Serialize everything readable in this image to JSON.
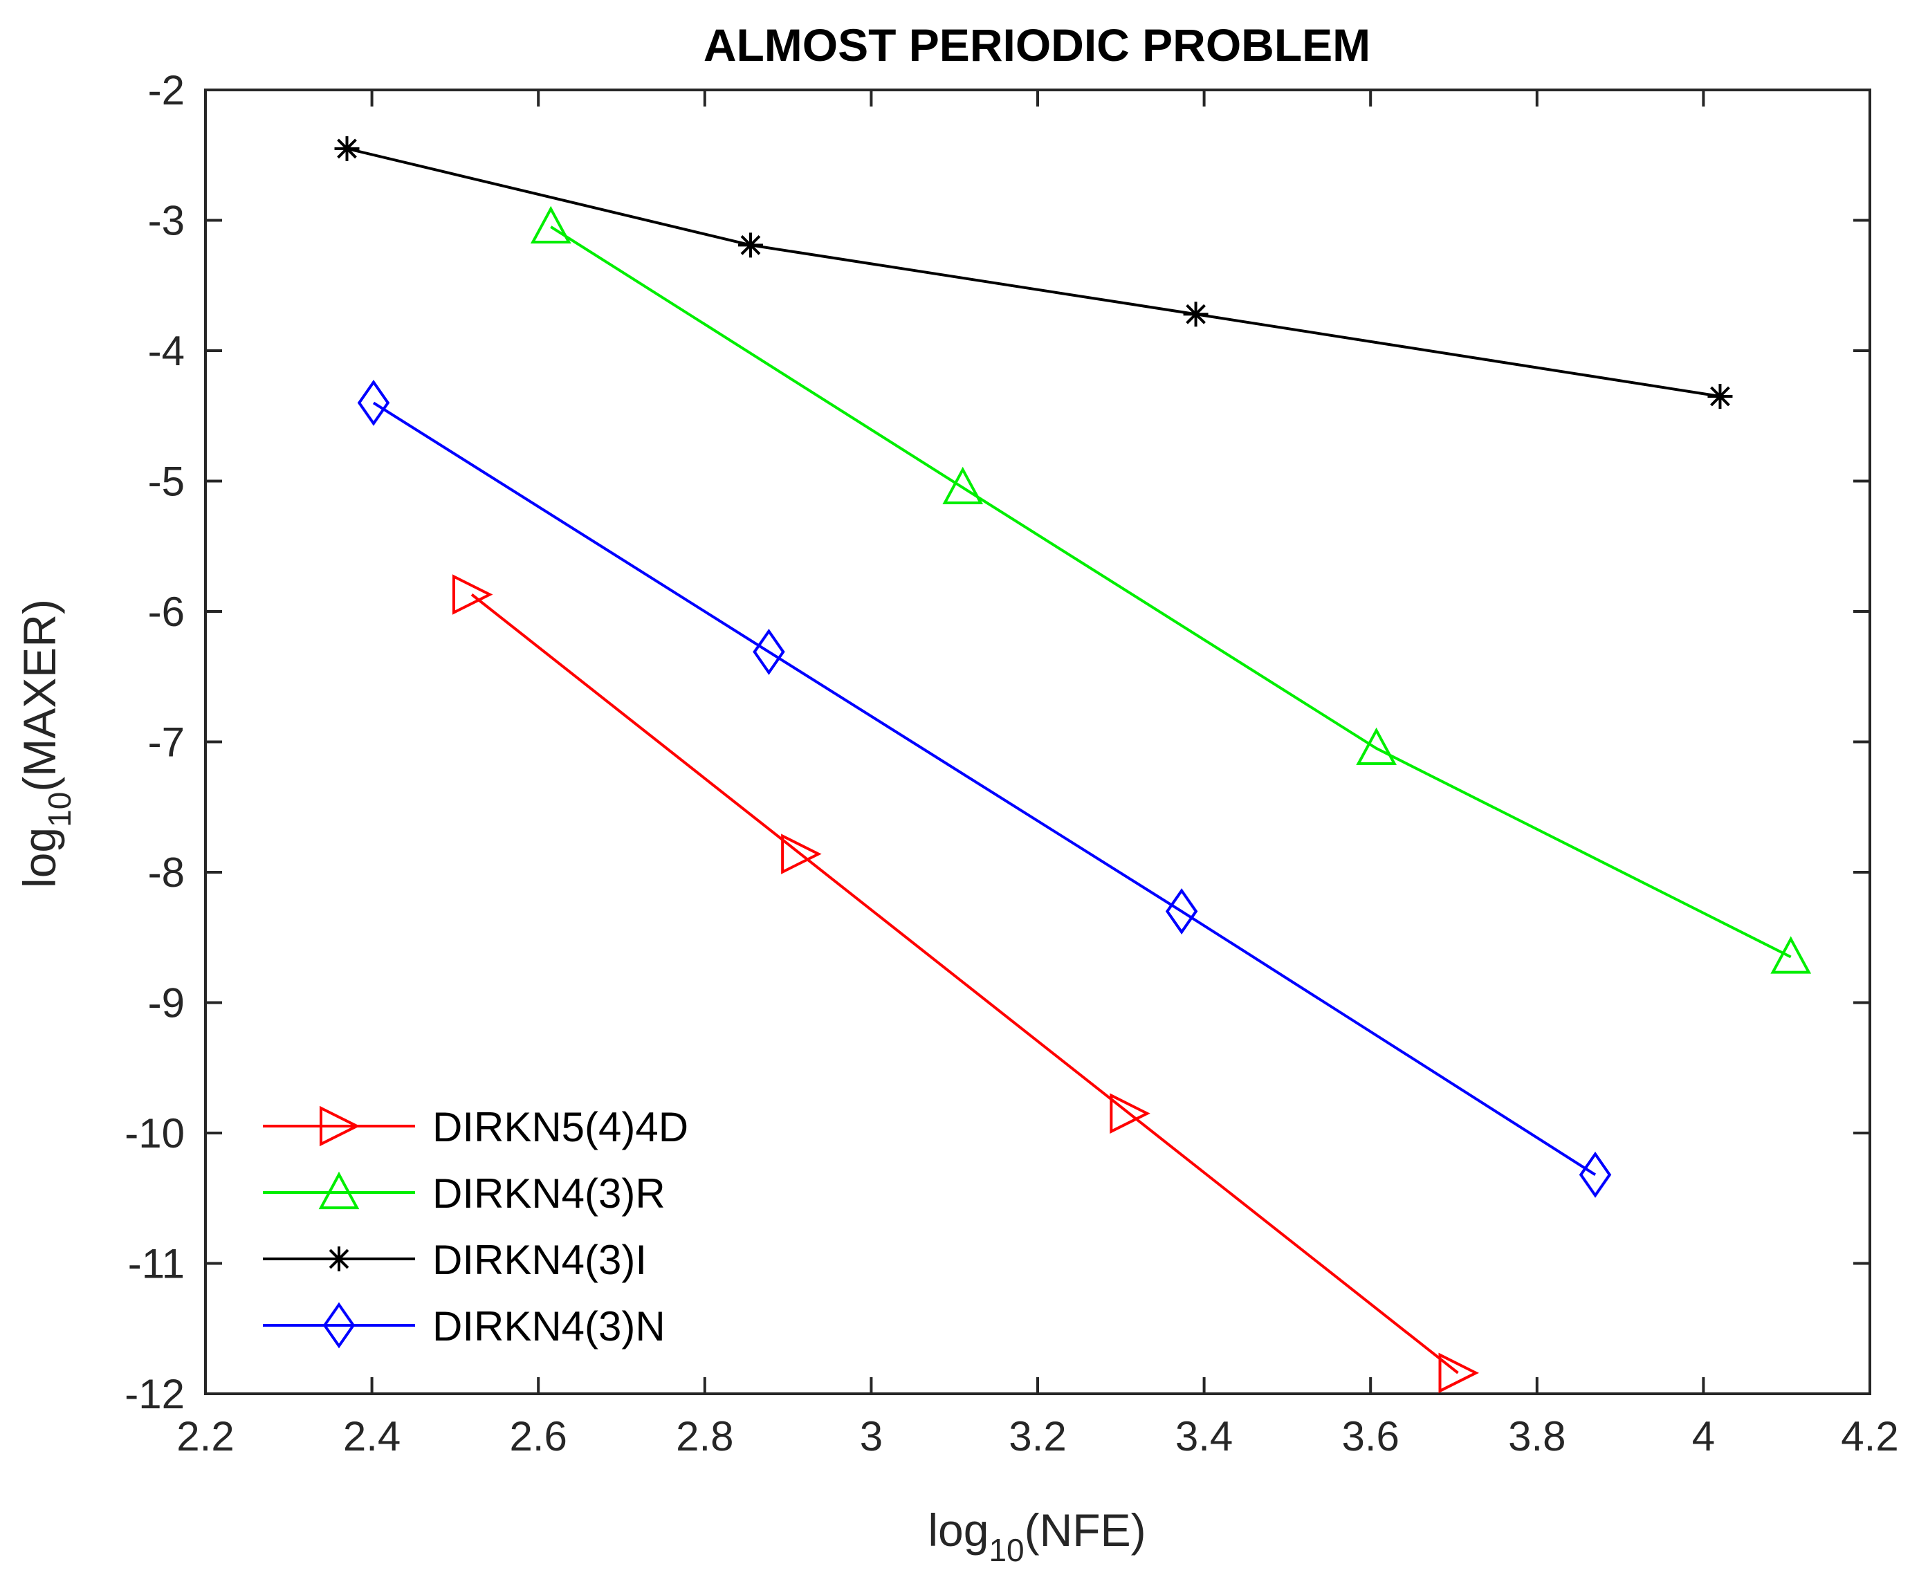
{
  "chart_data": {
    "type": "line",
    "title": "ALMOST PERIODIC PROBLEM",
    "xlabel": {
      "prefix": "log",
      "sub": "10",
      "suffix": "(NFE)"
    },
    "ylabel": {
      "prefix": "log",
      "sub": "10",
      "suffix": "(MAXER)"
    },
    "xlim": [
      2.2,
      4.2
    ],
    "ylim": [
      -12,
      -2
    ],
    "xticks": [
      2.2,
      2.4,
      2.6,
      2.8,
      3,
      3.2,
      3.4,
      3.6,
      3.8,
      4,
      4.2
    ],
    "xtick_labels": [
      "2.2",
      "2.4",
      "2.6",
      "2.8",
      "3",
      "3.2",
      "3.4",
      "3.6",
      "3.8",
      "4",
      "4.2"
    ],
    "yticks": [
      -12,
      -11,
      -10,
      -9,
      -8,
      -7,
      -6,
      -5,
      -4,
      -3,
      -2
    ],
    "ytick_labels": [
      "-12",
      "-11",
      "-10",
      "-9",
      "-8",
      "-7",
      "-6",
      "-5",
      "-4",
      "-3",
      "-2"
    ],
    "grid": false,
    "legend_position": "bottom-left",
    "series": [
      {
        "name": "DIRKN5(4)4D",
        "color": "#ff0000",
        "marker": "triangle-right",
        "x": [
          2.52,
          2.915,
          3.31,
          3.705
        ],
        "y": [
          -5.87,
          -7.86,
          -9.85,
          -11.84
        ]
      },
      {
        "name": "DIRKN4(3)R",
        "color": "#00ee00",
        "marker": "triangle-up",
        "x": [
          2.615,
          3.11,
          3.607,
          4.105
        ],
        "y": [
          -3.05,
          -5.05,
          -7.05,
          -8.65
        ]
      },
      {
        "name": "DIRKN4(3)I",
        "color": "#000000",
        "marker": "asterisk",
        "x": [
          2.37,
          2.855,
          3.39,
          4.02
        ],
        "y": [
          -2.45,
          -3.19,
          -3.72,
          -4.35
        ]
      },
      {
        "name": "DIRKN4(3)N",
        "color": "#0000ff",
        "marker": "diamond",
        "x": [
          2.402,
          2.877,
          3.373,
          3.87
        ],
        "y": [
          -4.4,
          -6.31,
          -8.3,
          -10.32
        ]
      }
    ]
  }
}
